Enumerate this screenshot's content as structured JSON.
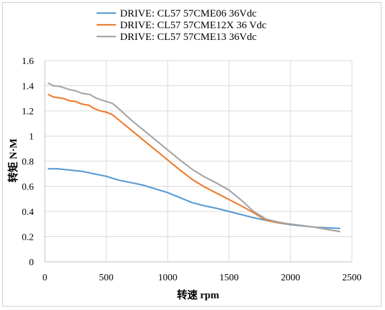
{
  "chart_data": {
    "type": "line",
    "title": "",
    "xlabel": "转速 rpm",
    "ylabel": "转矩 N·M",
    "xlim": [
      0,
      2500
    ],
    "ylim": [
      0,
      1.6
    ],
    "x_ticks": [
      "0",
      "500",
      "1000",
      "1500",
      "2000",
      "2500"
    ],
    "y_ticks": [
      "0",
      "0.2",
      "0.4",
      "0.6",
      "0.8",
      "1",
      "1.2",
      "1.4",
      "1.6"
    ],
    "grid": true,
    "legend_position": "top",
    "series": [
      {
        "name": "DRIVE: CL57 57CME06 36Vdc",
        "color": "#5b9bd5",
        "points": [
          [
            30,
            0.74
          ],
          [
            100,
            0.74
          ],
          [
            200,
            0.73
          ],
          [
            300,
            0.72
          ],
          [
            400,
            0.7
          ],
          [
            500,
            0.68
          ],
          [
            600,
            0.65
          ],
          [
            800,
            0.61
          ],
          [
            900,
            0.58
          ],
          [
            1000,
            0.55
          ],
          [
            1100,
            0.51
          ],
          [
            1200,
            0.47
          ],
          [
            1300,
            0.445
          ],
          [
            1400,
            0.425
          ],
          [
            1500,
            0.4
          ],
          [
            1600,
            0.375
          ],
          [
            1700,
            0.35
          ],
          [
            1800,
            0.33
          ],
          [
            1900,
            0.31
          ],
          [
            2000,
            0.295
          ],
          [
            2100,
            0.285
          ],
          [
            2200,
            0.275
          ],
          [
            2300,
            0.27
          ],
          [
            2400,
            0.265
          ]
        ]
      },
      {
        "name": "DRIVE: CL57 57CME12X 36 Vdc",
        "color": "#ed7d31",
        "points": [
          [
            30,
            1.33
          ],
          [
            70,
            1.31
          ],
          [
            150,
            1.3
          ],
          [
            200,
            1.28
          ],
          [
            250,
            1.275
          ],
          [
            300,
            1.255
          ],
          [
            360,
            1.245
          ],
          [
            400,
            1.22
          ],
          [
            450,
            1.2
          ],
          [
            500,
            1.19
          ],
          [
            550,
            1.17
          ],
          [
            600,
            1.13
          ],
          [
            700,
            1.05
          ],
          [
            800,
            0.97
          ],
          [
            900,
            0.89
          ],
          [
            1000,
            0.81
          ],
          [
            1100,
            0.73
          ],
          [
            1200,
            0.655
          ],
          [
            1300,
            0.595
          ],
          [
            1400,
            0.545
          ],
          [
            1500,
            0.495
          ],
          [
            1600,
            0.445
          ],
          [
            1700,
            0.39
          ],
          [
            1800,
            0.33
          ],
          [
            1900,
            0.31
          ],
          [
            2000,
            0.3
          ],
          [
            2200,
            0.275
          ],
          [
            2400,
            0.24
          ]
        ]
      },
      {
        "name": "DRIVE: CL57 57CME13 36Vdc",
        "color": "#a5a5a5",
        "points": [
          [
            30,
            1.42
          ],
          [
            70,
            1.4
          ],
          [
            120,
            1.395
          ],
          [
            200,
            1.37
          ],
          [
            250,
            1.36
          ],
          [
            300,
            1.34
          ],
          [
            370,
            1.33
          ],
          [
            400,
            1.31
          ],
          [
            450,
            1.29
          ],
          [
            500,
            1.275
          ],
          [
            550,
            1.26
          ],
          [
            600,
            1.22
          ],
          [
            700,
            1.13
          ],
          [
            800,
            1.05
          ],
          [
            900,
            0.97
          ],
          [
            1000,
            0.89
          ],
          [
            1100,
            0.81
          ],
          [
            1200,
            0.735
          ],
          [
            1300,
            0.675
          ],
          [
            1400,
            0.625
          ],
          [
            1500,
            0.57
          ],
          [
            1600,
            0.49
          ],
          [
            1700,
            0.4
          ],
          [
            1800,
            0.34
          ],
          [
            1900,
            0.315
          ],
          [
            2000,
            0.3
          ],
          [
            2200,
            0.275
          ],
          [
            2400,
            0.24
          ]
        ]
      }
    ]
  }
}
